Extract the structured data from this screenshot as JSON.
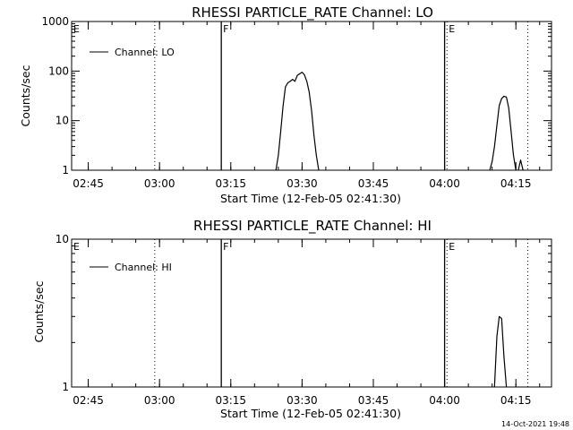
{
  "chart_data": [
    {
      "type": "line",
      "title": "RHESSI PARTICLE_RATE Channel: LO",
      "xlabel": "Start Time (12-Feb-05 02:41:30)",
      "ylabel": "Counts/sec",
      "xlim": [
        "02:41:30",
        "04:22:30"
      ],
      "ylim": [
        1,
        1000
      ],
      "yscale": "log",
      "grid": false,
      "legend": {
        "position": "top-left",
        "entries": [
          "Channel: LO"
        ]
      },
      "x_ticks": [
        "02:45",
        "03:00",
        "03:15",
        "03:30",
        "03:45",
        "04:00",
        "04:15"
      ],
      "y_ticks": [
        "1",
        "10",
        "100",
        "1000"
      ],
      "markers": [
        {
          "label": "E",
          "time": "02:41:30",
          "style": "dotted"
        },
        {
          "label": "",
          "time": "02:59:00",
          "style": "dotted"
        },
        {
          "label": "F",
          "time": "03:13:00",
          "style": "solid"
        },
        {
          "label": "",
          "time": "04:00:00",
          "style": "solid"
        },
        {
          "label": "E",
          "time": "04:00:30",
          "style": "dotted"
        },
        {
          "label": "",
          "time": "04:17:30",
          "style": "dotted"
        }
      ],
      "series": [
        {
          "name": "Channel: LO",
          "segments": [
            [
              [
                "03:24:30",
                1
              ],
              [
                "03:25:00",
                2
              ],
              [
                "03:25:30",
                6
              ],
              [
                "03:26:00",
                20
              ],
              [
                "03:26:30",
                48
              ],
              [
                "03:27:00",
                58
              ],
              [
                "03:27:30",
                62
              ],
              [
                "03:28:00",
                68
              ],
              [
                "03:28:30",
                62
              ],
              [
                "03:29:00",
                82
              ],
              [
                "03:29:30",
                88
              ],
              [
                "03:30:00",
                95
              ],
              [
                "03:30:30",
                84
              ],
              [
                "03:31:00",
                62
              ],
              [
                "03:31:30",
                38
              ],
              [
                "03:32:00",
                16
              ],
              [
                "03:32:30",
                5
              ],
              [
                "03:33:00",
                2
              ],
              [
                "03:33:30",
                1
              ]
            ],
            [
              [
                "04:09:30",
                1
              ],
              [
                "04:10:00",
                1.5
              ],
              [
                "04:10:30",
                3
              ],
              [
                "04:11:00",
                8
              ],
              [
                "04:11:30",
                20
              ],
              [
                "04:12:00",
                28
              ],
              [
                "04:12:30",
                31
              ],
              [
                "04:13:00",
                30
              ],
              [
                "04:13:30",
                18
              ],
              [
                "04:14:00",
                6
              ],
              [
                "04:14:30",
                2
              ],
              [
                "04:15:00",
                1
              ]
            ],
            [
              [
                "04:15:30",
                1
              ],
              [
                "04:16:00",
                1.6
              ],
              [
                "04:16:30",
                1
              ]
            ]
          ]
        }
      ]
    },
    {
      "type": "line",
      "title": "RHESSI PARTICLE_RATE Channel: HI",
      "xlabel": "Start Time (12-Feb-05 02:41:30)",
      "ylabel": "Counts/sec",
      "xlim": [
        "02:41:30",
        "04:22:30"
      ],
      "ylim": [
        1,
        10
      ],
      "yscale": "log",
      "grid": false,
      "legend": {
        "position": "top-left",
        "entries": [
          "Channel: HI"
        ]
      },
      "x_ticks": [
        "02:45",
        "03:00",
        "03:15",
        "03:30",
        "03:45",
        "04:00",
        "04:15"
      ],
      "y_ticks": [
        "1",
        "10"
      ],
      "markers": [
        {
          "label": "E",
          "time": "02:41:30",
          "style": "dotted"
        },
        {
          "label": "",
          "time": "02:59:00",
          "style": "dotted"
        },
        {
          "label": "F",
          "time": "03:13:00",
          "style": "solid"
        },
        {
          "label": "",
          "time": "04:00:00",
          "style": "solid"
        },
        {
          "label": "E",
          "time": "04:00:30",
          "style": "dotted"
        },
        {
          "label": "",
          "time": "04:17:30",
          "style": "dotted"
        }
      ],
      "series": [
        {
          "name": "Channel: HI",
          "segments": [
            [
              [
                "04:10:30",
                1
              ],
              [
                "04:11:00",
                2.2
              ],
              [
                "04:11:30",
                3
              ],
              [
                "04:12:00",
                2.9
              ],
              [
                "04:12:30",
                1.6
              ],
              [
                "04:13:00",
                1
              ]
            ]
          ]
        }
      ]
    }
  ],
  "footer": {
    "timestamp": "14-Oct-2021 19:48"
  }
}
